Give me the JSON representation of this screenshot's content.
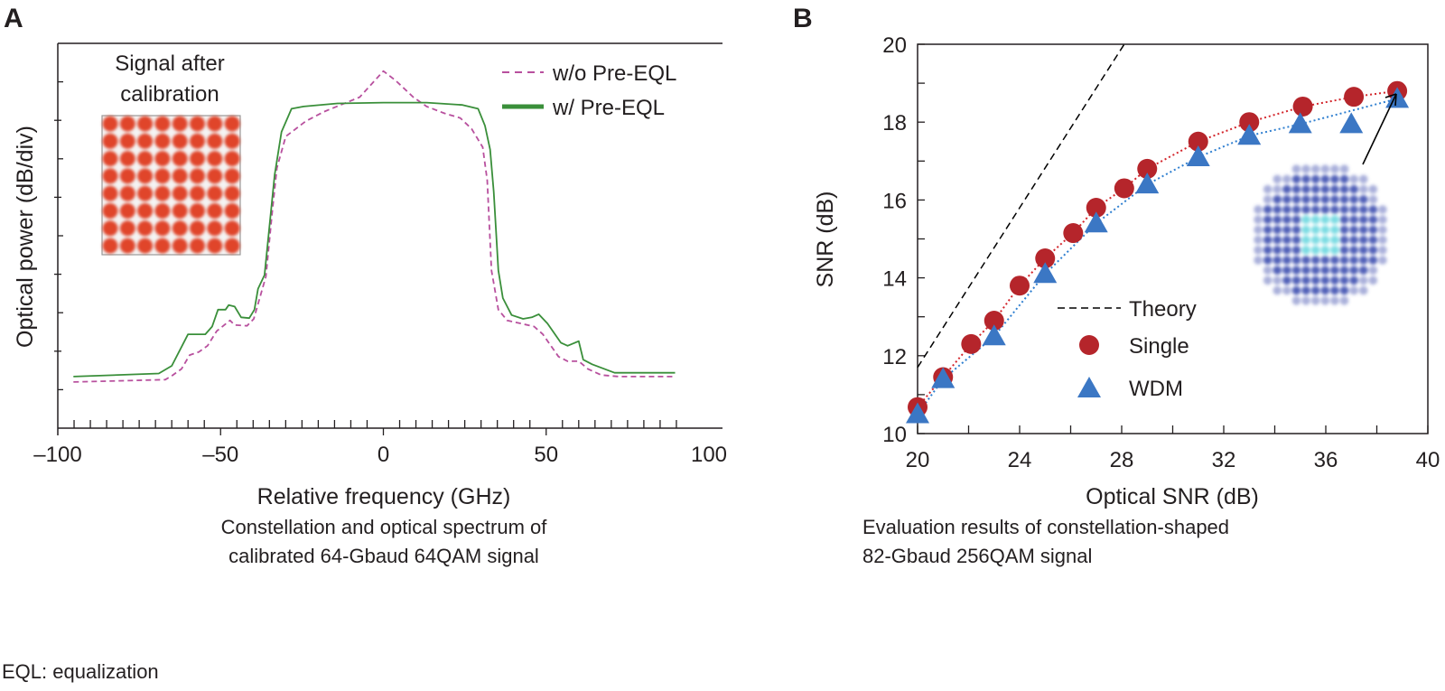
{
  "captions": {
    "a_line1": "Constellation and optical spectrum of",
    "a_line2": "calibrated 64-Gbaud 64QAM signal",
    "b_line1": "Evaluation results of constellation-shaped",
    "b_line2": "82-Gbaud 256QAM signal",
    "footnote": "EQL: equalization"
  },
  "chart_data": [
    {
      "panel": "A",
      "type": "line",
      "xlabel": "Relative frequency (GHz)",
      "ylabel": "Optical power (dB/div)",
      "xlim": [
        -100,
        100
      ],
      "ylim": [
        0,
        5
      ],
      "x_ticks": [
        "–100",
        "–50",
        "0",
        "50",
        "100"
      ],
      "inset_label_line1": "Signal after",
      "inset_label_line2": "calibration",
      "legend_position": "top-right",
      "series": [
        {
          "name": "w/o Pre-EQL",
          "color": "#b8509e",
          "style": "dashed",
          "x": [
            -95.2,
            -67,
            -65,
            -62,
            -59.5,
            -56.7,
            -54,
            -51.2,
            -47.1,
            -45.7,
            -41.9,
            -39.8,
            -36.1,
            -34.1,
            -32.7,
            -30,
            -23.8,
            -18.3,
            -7.3,
            0,
            3.7,
            9.2,
            13.3,
            18.8,
            23.6,
            27.1,
            30.5,
            31.9,
            33.2,
            35.3,
            38,
            46.3,
            49,
            53.8,
            56.6,
            60,
            62.8,
            66.9,
            72.4,
            89.6
          ],
          "y": [
            0.6,
            0.63,
            0.68,
            0.77,
            0.95,
            0.99,
            1.07,
            1.26,
            1.4,
            1.34,
            1.33,
            1.42,
            1.97,
            2.83,
            3.38,
            3.79,
            3.99,
            4.11,
            4.3,
            4.64,
            4.52,
            4.3,
            4.18,
            4.09,
            4.03,
            3.89,
            3.65,
            3.22,
            2.05,
            1.54,
            1.4,
            1.32,
            1.22,
            0.93,
            0.87,
            0.87,
            0.77,
            0.69,
            0.67,
            0.67
          ]
        },
        {
          "name": "w/ Pre-EQL",
          "color": "#3a8f3a",
          "style": "solid",
          "x": [
            -95.2,
            -69,
            -65,
            -60,
            -54.7,
            -52.6,
            -50.8,
            -48.5,
            -47.5,
            -45.7,
            -43.7,
            -41.2,
            -39.6,
            -38.5,
            -36.5,
            -33.4,
            -31.3,
            -28.2,
            -24.5,
            -14.1,
            0,
            13.3,
            24.3,
            29.1,
            31.2,
            32.8,
            33.9,
            35.3,
            36.7,
            39.4,
            42.9,
            45.6,
            47.7,
            50.4,
            54.5,
            56.6,
            60,
            61.4,
            64.1,
            71,
            89.6
          ],
          "y": [
            0.67,
            0.71,
            0.81,
            1.22,
            1.22,
            1.32,
            1.54,
            1.54,
            1.6,
            1.58,
            1.44,
            1.43,
            1.54,
            1.81,
            1.99,
            3.29,
            3.85,
            4.15,
            4.18,
            4.22,
            4.23,
            4.23,
            4.2,
            4.15,
            3.93,
            3.62,
            3.07,
            2.05,
            1.69,
            1.47,
            1.42,
            1.44,
            1.48,
            1.36,
            1.11,
            1.07,
            1.13,
            0.89,
            0.83,
            0.72,
            0.72
          ]
        }
      ]
    },
    {
      "panel": "B",
      "type": "scatter",
      "xlabel": "Optical SNR (dB)",
      "ylabel": "SNR (dB)",
      "xlim": [
        20,
        40
      ],
      "ylim": [
        10,
        20
      ],
      "x_ticks": [
        20,
        24,
        28,
        32,
        36,
        40
      ],
      "y_ticks": [
        10,
        12,
        14,
        16,
        18,
        20
      ],
      "legend_position": "center",
      "series": [
        {
          "name": "Theory",
          "type": "line",
          "style": "dashed",
          "color": "#000000",
          "x": [
            20,
            28.1
          ],
          "y": [
            11.7,
            20
          ]
        },
        {
          "name": "Single",
          "marker": "circle",
          "color": "#b5252b",
          "x": [
            20,
            21,
            22.1,
            23,
            24,
            25,
            26.1,
            27,
            28.1,
            29,
            31,
            33,
            35.1,
            37.1,
            38.8
          ],
          "y": [
            10.68,
            11.45,
            12.3,
            12.9,
            13.8,
            14.5,
            15.15,
            15.8,
            16.3,
            16.8,
            17.5,
            18.0,
            18.4,
            18.65,
            18.8
          ]
        },
        {
          "name": "WDM",
          "marker": "triangle",
          "color": "#3b77c4",
          "x": [
            20,
            21,
            23,
            25,
            27,
            29,
            31,
            33,
            35,
            37,
            38.8
          ],
          "y": [
            10.5,
            11.4,
            12.5,
            14.1,
            15.4,
            16.4,
            17.1,
            17.65,
            17.95,
            17.95,
            18.6
          ]
        }
      ]
    }
  ]
}
